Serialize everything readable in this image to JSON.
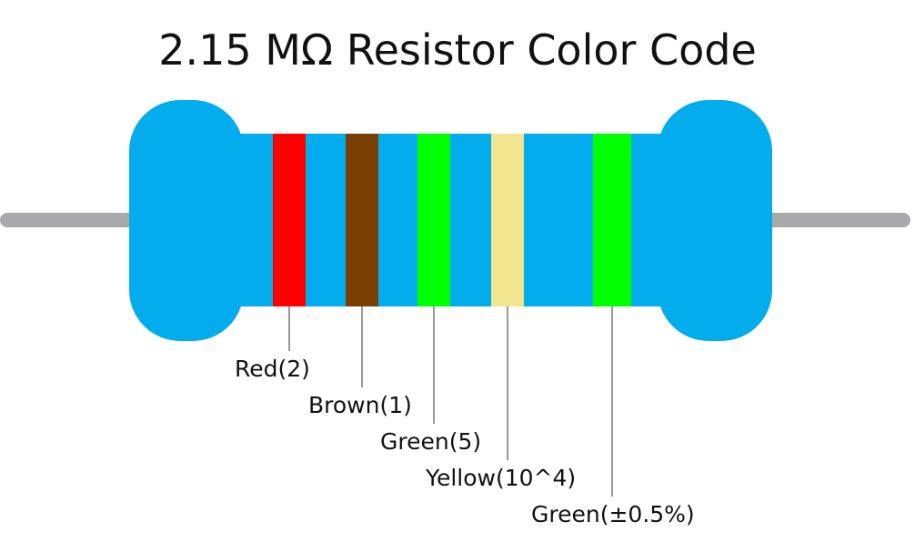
{
  "title": "2.15 MΩ Resistor Color Code",
  "colors": {
    "body": "#03acec",
    "lead": "#a9a9ab",
    "line": "#333333"
  },
  "bands": [
    {
      "name": "Red",
      "color": "#ff0000",
      "label": "Red(2)"
    },
    {
      "name": "Brown",
      "color": "#7a3f02",
      "label": "Brown(1)"
    },
    {
      "name": "Green",
      "color": "#00ff00",
      "label": "Green(5)"
    },
    {
      "name": "Yellow",
      "color": "#f2e58f",
      "label": "Yellow(10^4)"
    },
    {
      "name": "Green",
      "color": "#00ff00",
      "label": "Green(±0.5%)"
    }
  ]
}
